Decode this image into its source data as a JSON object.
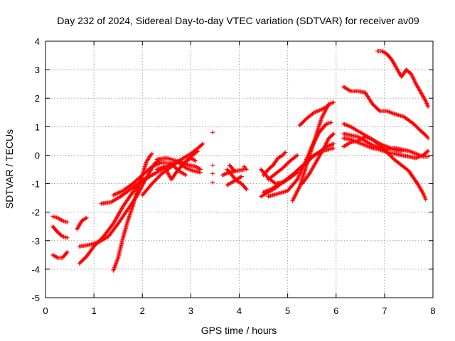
{
  "chart_data": {
    "type": "scatter",
    "title": "Day 232 of 2024, Sidereal Day-to-day VTEC variation (SDTVAR) for receiver av09",
    "xlabel": "GPS time / hours",
    "ylabel": "SDTVAR / TECUs",
    "xlim": [
      0,
      8
    ],
    "ylim": [
      -5,
      4
    ],
    "xticks": [
      "0",
      "1",
      "2",
      "3",
      "4",
      "5",
      "6",
      "7",
      "8"
    ],
    "yticks": [
      "-5",
      "-4",
      "-3",
      "-2",
      "-1",
      "0",
      "1",
      "2",
      "3",
      "4"
    ],
    "grid": true,
    "marker": "plus",
    "color": "#ff0000",
    "series": [
      {
        "points": [
          [
            0.15,
            -2.15
          ],
          [
            0.25,
            -2.2
          ],
          [
            0.35,
            -2.3
          ],
          [
            0.45,
            -2.35
          ]
        ]
      },
      {
        "points": [
          [
            0.15,
            -2.5
          ],
          [
            0.25,
            -2.7
          ],
          [
            0.35,
            -2.85
          ],
          [
            0.45,
            -2.9
          ]
        ]
      },
      {
        "points": [
          [
            0.15,
            -3.5
          ],
          [
            0.25,
            -3.6
          ],
          [
            0.35,
            -3.6
          ],
          [
            0.45,
            -3.4
          ]
        ]
      },
      {
        "points": [
          [
            0.65,
            -2.6
          ],
          [
            0.75,
            -2.3
          ],
          [
            0.85,
            -2.2
          ]
        ]
      },
      {
        "points": [
          [
            0.7,
            -3.8
          ],
          [
            0.85,
            -3.55
          ],
          [
            1.0,
            -3.2
          ],
          [
            1.2,
            -2.85
          ],
          [
            1.4,
            -2.4
          ],
          [
            1.6,
            -1.8
          ],
          [
            1.8,
            -1.3
          ],
          [
            2.0,
            -0.9
          ],
          [
            2.15,
            -0.7
          ]
        ]
      },
      {
        "points": [
          [
            0.7,
            -3.2
          ],
          [
            0.9,
            -3.15
          ],
          [
            1.1,
            -3.05
          ],
          [
            1.3,
            -2.85
          ],
          [
            1.5,
            -2.4
          ],
          [
            1.7,
            -1.9
          ],
          [
            1.9,
            -1.4
          ],
          [
            2.05,
            -0.9
          ],
          [
            2.15,
            -0.6
          ],
          [
            2.25,
            -0.3
          ],
          [
            2.35,
            -0.15
          ]
        ]
      },
      {
        "points": [
          [
            1.15,
            -1.7
          ],
          [
            1.35,
            -1.65
          ],
          [
            1.55,
            -1.45
          ],
          [
            1.75,
            -1.2
          ],
          [
            1.95,
            -0.95
          ],
          [
            2.15,
            -0.75
          ],
          [
            2.35,
            -0.55
          ],
          [
            2.55,
            -0.35
          ],
          [
            2.75,
            -0.2
          ],
          [
            2.95,
            -0.35
          ],
          [
            3.1,
            -0.4
          ],
          [
            3.2,
            -0.5
          ]
        ]
      },
      {
        "points": [
          [
            1.4,
            -4.05
          ],
          [
            1.5,
            -3.6
          ],
          [
            1.6,
            -2.9
          ],
          [
            1.7,
            -2.3
          ],
          [
            1.8,
            -1.8
          ],
          [
            1.9,
            -1.2
          ],
          [
            2.0,
            -0.7
          ],
          [
            2.08,
            -0.25
          ],
          [
            2.15,
            -0.05
          ],
          [
            2.2,
            0.05
          ]
        ]
      },
      {
        "points": [
          [
            1.4,
            -1.4
          ],
          [
            1.6,
            -1.25
          ],
          [
            1.8,
            -1.0
          ],
          [
            2.0,
            -0.7
          ],
          [
            2.2,
            -0.4
          ],
          [
            2.4,
            -0.25
          ],
          [
            2.6,
            -0.3
          ],
          [
            2.75,
            -0.55
          ],
          [
            2.9,
            -0.7
          ]
        ]
      },
      {
        "points": [
          [
            2.0,
            -1.4
          ],
          [
            2.2,
            -1.0
          ],
          [
            2.4,
            -0.65
          ],
          [
            2.6,
            -0.4
          ],
          [
            2.8,
            -0.15
          ],
          [
            3.0,
            0.05
          ],
          [
            3.15,
            0.25
          ],
          [
            3.25,
            0.4
          ]
        ]
      },
      {
        "points": [
          [
            2.3,
            -0.5
          ],
          [
            2.45,
            -0.4
          ],
          [
            2.6,
            -0.85
          ],
          [
            2.7,
            -0.6
          ],
          [
            2.85,
            -0.3
          ],
          [
            3.0,
            -0.1
          ],
          [
            3.1,
            -0.2
          ]
        ]
      },
      {
        "points": [
          [
            2.3,
            -0.15
          ],
          [
            2.5,
            -0.1
          ],
          [
            2.7,
            -0.2
          ],
          [
            2.9,
            -0.45
          ],
          [
            3.05,
            -0.55
          ],
          [
            3.2,
            -0.6
          ]
        ]
      },
      {
        "points": [
          [
            2.85,
            -0.3
          ],
          [
            3.0,
            -0.05
          ],
          [
            3.15,
            0.15
          ]
        ]
      },
      {
        "points": [
          [
            3.45,
            0.8
          ]
        ]
      },
      {
        "points": [
          [
            3.45,
            -0.35
          ]
        ]
      },
      {
        "points": [
          [
            3.45,
            -0.65
          ]
        ]
      },
      {
        "points": [
          [
            3.45,
            -0.95
          ]
        ]
      },
      {
        "points": [
          [
            3.65,
            -0.7
          ],
          [
            3.8,
            -0.6
          ],
          [
            3.95,
            -0.55
          ],
          [
            4.1,
            -0.5
          ]
        ]
      },
      {
        "points": [
          [
            3.75,
            -0.5
          ],
          [
            3.85,
            -0.7
          ],
          [
            3.95,
            -0.9
          ],
          [
            4.05,
            -1.0
          ],
          [
            4.15,
            -1.2
          ]
        ]
      },
      {
        "points": [
          [
            3.75,
            -1.05
          ],
          [
            3.85,
            -0.95
          ],
          [
            3.95,
            -0.85
          ],
          [
            4.05,
            -0.75
          ]
        ]
      },
      {
        "points": [
          [
            3.8,
            -0.35
          ],
          [
            3.9,
            -0.55
          ]
        ]
      },
      {
        "points": [
          [
            4.1,
            -0.4
          ],
          [
            4.15,
            -0.5
          ]
        ]
      },
      {
        "points": [
          [
            4.45,
            -0.5
          ],
          [
            4.6,
            -0.8
          ],
          [
            4.75,
            -1.0
          ],
          [
            4.9,
            -0.95
          ],
          [
            5.05,
            -0.8
          ],
          [
            5.2,
            -0.6
          ]
        ]
      },
      {
        "points": [
          [
            4.45,
            -1.45
          ],
          [
            4.6,
            -1.3
          ],
          [
            4.75,
            -1.15
          ],
          [
            4.9,
            -0.95
          ],
          [
            5.05,
            -0.75
          ],
          [
            5.2,
            -0.55
          ],
          [
            5.35,
            -0.3
          ],
          [
            5.5,
            -0.05
          ],
          [
            5.65,
            0.1
          ],
          [
            5.8,
            0.3
          ],
          [
            5.95,
            0.4
          ]
        ]
      },
      {
        "points": [
          [
            4.5,
            -1.3
          ],
          [
            4.65,
            -1.2
          ],
          [
            4.8,
            -1.05
          ],
          [
            4.95,
            -0.9
          ],
          [
            5.1,
            -0.7
          ],
          [
            5.25,
            -0.45
          ],
          [
            5.4,
            -0.25
          ],
          [
            5.55,
            0.0
          ],
          [
            5.7,
            0.15
          ],
          [
            5.85,
            0.2
          ],
          [
            5.95,
            0.25
          ]
        ]
      },
      {
        "points": [
          [
            4.5,
            -0.7
          ],
          [
            4.6,
            -0.5
          ],
          [
            4.7,
            -0.35
          ],
          [
            4.8,
            -0.1
          ],
          [
            4.9,
            0.0
          ],
          [
            4.95,
            0.1
          ]
        ]
      },
      {
        "points": [
          [
            4.6,
            -0.85
          ],
          [
            4.75,
            -0.65
          ],
          [
            4.9,
            -0.45
          ],
          [
            5.05,
            -0.2
          ],
          [
            5.2,
            0.0
          ]
        ]
      },
      {
        "points": [
          [
            4.6,
            -1.45
          ],
          [
            4.8,
            -1.35
          ],
          [
            5.0,
            -1.25
          ],
          [
            5.2,
            -0.85
          ],
          [
            5.35,
            -0.3
          ],
          [
            5.5,
            0.3
          ],
          [
            5.65,
            0.8
          ],
          [
            5.8,
            1.1
          ],
          [
            5.9,
            1.15
          ]
        ]
      },
      {
        "points": [
          [
            5.1,
            -1.6
          ],
          [
            5.25,
            -1.1
          ],
          [
            5.4,
            -0.3
          ],
          [
            5.55,
            0.5
          ],
          [
            5.7,
            1.3
          ],
          [
            5.85,
            1.8
          ],
          [
            5.95,
            1.85
          ]
        ]
      },
      {
        "points": [
          [
            5.25,
            1.05
          ],
          [
            5.4,
            1.3
          ],
          [
            5.55,
            1.5
          ],
          [
            5.7,
            1.6
          ],
          [
            5.85,
            1.75
          ]
        ]
      },
      {
        "points": [
          [
            5.3,
            -1.0
          ],
          [
            5.45,
            -0.65
          ],
          [
            5.6,
            -0.2
          ],
          [
            5.75,
            0.25
          ],
          [
            5.85,
            0.6
          ],
          [
            5.95,
            0.75
          ]
        ]
      },
      {
        "points": [
          [
            6.15,
            2.4
          ],
          [
            6.3,
            2.25
          ],
          [
            6.45,
            2.25
          ],
          [
            6.6,
            2.2
          ],
          [
            6.75,
            1.8
          ],
          [
            6.9,
            1.55
          ],
          [
            7.05,
            1.55
          ],
          [
            7.2,
            1.45
          ],
          [
            7.4,
            1.35
          ],
          [
            7.6,
            1.1
          ],
          [
            7.75,
            0.85
          ],
          [
            7.85,
            0.7
          ],
          [
            7.9,
            0.6
          ]
        ]
      },
      {
        "points": [
          [
            6.15,
            1.1
          ],
          [
            6.3,
            1.0
          ],
          [
            6.45,
            0.85
          ],
          [
            6.6,
            0.7
          ],
          [
            6.75,
            0.55
          ],
          [
            6.9,
            0.35
          ],
          [
            7.05,
            0.1
          ],
          [
            7.2,
            -0.15
          ],
          [
            7.35,
            -0.35
          ],
          [
            7.5,
            -0.55
          ],
          [
            7.6,
            -0.8
          ],
          [
            7.7,
            -1.05
          ],
          [
            7.8,
            -1.35
          ],
          [
            7.85,
            -1.55
          ]
        ]
      },
      {
        "points": [
          [
            6.15,
            0.75
          ],
          [
            6.3,
            0.7
          ],
          [
            6.45,
            0.65
          ],
          [
            6.6,
            0.5
          ],
          [
            6.75,
            0.35
          ],
          [
            6.9,
            0.25
          ],
          [
            7.05,
            0.2
          ],
          [
            7.2,
            0.25
          ],
          [
            7.35,
            0.2
          ],
          [
            7.5,
            0.15
          ],
          [
            7.65,
            0.05
          ],
          [
            7.8,
            -0.05
          ],
          [
            7.9,
            -0.05
          ]
        ]
      },
      {
        "points": [
          [
            6.15,
            0.6
          ],
          [
            6.3,
            0.55
          ],
          [
            6.45,
            0.45
          ],
          [
            6.6,
            0.35
          ],
          [
            6.75,
            0.25
          ],
          [
            6.9,
            0.2
          ],
          [
            7.05,
            0.1
          ],
          [
            7.2,
            0.05
          ],
          [
            7.35,
            0.0
          ],
          [
            7.5,
            -0.05
          ],
          [
            7.65,
            -0.1
          ],
          [
            7.8,
            0.0
          ],
          [
            7.9,
            0.15
          ]
        ]
      },
      {
        "points": [
          [
            6.15,
            0.3
          ],
          [
            6.3,
            0.45
          ],
          [
            6.45,
            0.5
          ],
          [
            6.6,
            0.65
          ],
          [
            6.75,
            0.55
          ],
          [
            6.9,
            0.4
          ],
          [
            7.05,
            0.3
          ],
          [
            7.2,
            0.2
          ],
          [
            7.35,
            0.15
          ]
        ]
      },
      {
        "points": [
          [
            6.85,
            3.65
          ],
          [
            6.95,
            3.65
          ],
          [
            7.05,
            3.55
          ],
          [
            7.15,
            3.35
          ],
          [
            7.25,
            3.05
          ],
          [
            7.35,
            2.75
          ],
          [
            7.45,
            3.0
          ],
          [
            7.55,
            2.85
          ],
          [
            7.65,
            2.5
          ],
          [
            7.75,
            2.2
          ],
          [
            7.85,
            1.9
          ],
          [
            7.9,
            1.7
          ]
        ]
      }
    ]
  }
}
